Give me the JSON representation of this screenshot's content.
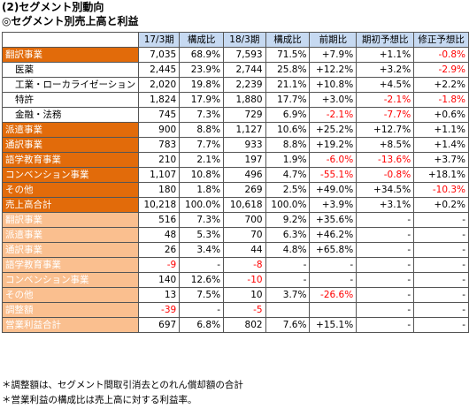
{
  "title1": "(2)セグメント別動向",
  "title2": "◎セグメント別売上高と利益",
  "headers": [
    "",
    "17/3期",
    "構成比",
    "18/3期",
    "構成比",
    "前期比",
    "期初予想比",
    "修正予想比"
  ],
  "rows": [
    {
      "label": "翻訳事業",
      "style": "dark",
      "cells": [
        "7,035",
        "68.9%",
        "7,593",
        "71.5%",
        "+7.9%",
        "+1.1%",
        "-0.8%"
      ]
    },
    {
      "label": "医薬",
      "style": "sub",
      "cells": [
        "2,445",
        "23.9%",
        "2,744",
        "25.8%",
        "+12.2%",
        "+3.2%",
        "-2.9%"
      ]
    },
    {
      "label": "工業・ローカライゼーション",
      "style": "sub",
      "cells": [
        "2,020",
        "19.8%",
        "2,239",
        "21.1%",
        "+10.8%",
        "+4.5%",
        "+2.2%"
      ]
    },
    {
      "label": "特許",
      "style": "sub",
      "cells": [
        "1,824",
        "17.9%",
        "1,880",
        "17.7%",
        "+3.0%",
        "-2.1%",
        "-1.8%"
      ]
    },
    {
      "label": "金融・法務",
      "style": "sub",
      "cells": [
        "745",
        "7.3%",
        "729",
        "6.9%",
        "-2.1%",
        "-7.7%",
        "+0.6%"
      ]
    },
    {
      "label": "派遣事業",
      "style": "dark",
      "cells": [
        "900",
        "8.8%",
        "1,127",
        "10.6%",
        "+25.2%",
        "+12.7%",
        "+1.1%"
      ]
    },
    {
      "label": "通訳事業",
      "style": "dark",
      "cells": [
        "783",
        "7.7%",
        "933",
        "8.8%",
        "+19.2%",
        "+8.5%",
        "+1.4%"
      ]
    },
    {
      "label": "語学教育事業",
      "style": "dark",
      "cells": [
        "210",
        "2.1%",
        "197",
        "1.9%",
        "-6.0%",
        "-13.6%",
        "+3.7%"
      ]
    },
    {
      "label": "コンベンション事業",
      "style": "dark",
      "cells": [
        "1,107",
        "10.8%",
        "496",
        "4.7%",
        "-55.1%",
        "-0.8%",
        "+18.1%"
      ]
    },
    {
      "label": "その他",
      "style": "dark",
      "cells": [
        "180",
        "1.8%",
        "269",
        "2.5%",
        "+49.0%",
        "+34.5%",
        "-10.3%"
      ]
    },
    {
      "label": "売上高合計",
      "style": "dark",
      "cells": [
        "10,218",
        "100.0%",
        "10,618",
        "100.0%",
        "+3.9%",
        "+3.1%",
        "+0.2%"
      ]
    },
    {
      "label": "翻訳事業",
      "style": "light",
      "cells": [
        "516",
        "7.3%",
        "700",
        "9.2%",
        "+35.6%",
        "-",
        "-"
      ]
    },
    {
      "label": "派遣事業",
      "style": "light",
      "cells": [
        "48",
        "5.3%",
        "70",
        "6.3%",
        "+46.2%",
        "-",
        "-"
      ]
    },
    {
      "label": "通訳事業",
      "style": "light",
      "cells": [
        "26",
        "3.4%",
        "44",
        "4.8%",
        "+65.8%",
        "-",
        "-"
      ]
    },
    {
      "label": "語学教育事業",
      "style": "light",
      "cells": [
        "-9",
        "-",
        "-8",
        "-",
        "-",
        "-",
        "-"
      ]
    },
    {
      "label": "コンベンション事業",
      "style": "light",
      "cells": [
        "140",
        "12.6%",
        "-10",
        "-",
        "-",
        "-",
        "-"
      ]
    },
    {
      "label": "その他",
      "style": "light",
      "cells": [
        "13",
        "7.5%",
        "10",
        "3.7%",
        "-26.6%",
        "-",
        "-"
      ]
    },
    {
      "label": "調整額",
      "style": "light",
      "cells": [
        "-39",
        "-",
        "-5",
        "",
        "",
        "-",
        "-"
      ]
    },
    {
      "label": "営業利益合計",
      "style": "light",
      "cells": [
        "697",
        "6.8%",
        "802",
        "7.6%",
        "+15.1%",
        "-",
        "-"
      ]
    }
  ],
  "notes": [
    "＊調整額は、セグメント間取引消去とのれん償却額の合計",
    "＊営業利益の構成比は売上高に対する利益率。"
  ],
  "colors": {
    "dark_row": "#e26b0a",
    "light_row": "#fabf8f",
    "header": "#c6d9f1",
    "negative": "#ff0000"
  }
}
